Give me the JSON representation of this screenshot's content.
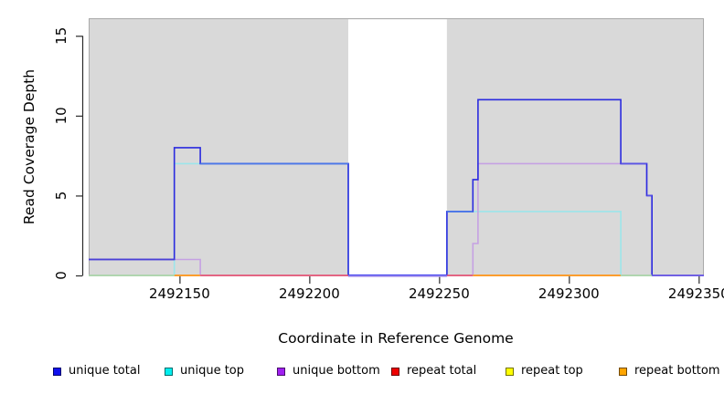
{
  "chart": {
    "xlabel": "Coordinate in Reference Genome",
    "ylabel": "Read Coverage Depth"
  },
  "chart_data": {
    "type": "line",
    "subtype": "step-post",
    "title": "",
    "xlabel": "Coordinate in Reference Genome",
    "ylabel": "Read Coverage Depth",
    "xlim": [
      2492115,
      2492352
    ],
    "ylim": [
      0,
      16.1
    ],
    "xticks": [
      2492150,
      2492200,
      2492250,
      2492300,
      2492350
    ],
    "yticks": [
      0,
      5,
      10,
      15
    ],
    "grid": false,
    "legend_position": "bottom",
    "plot_bg": "#d9d9d9",
    "plot_border": "#a9a9a9",
    "axis_color": "#2b2b2b",
    "gap_region": {
      "from": 2492215,
      "to": 2492253,
      "color": "#ffffff",
      "note": "white no-data band"
    },
    "series": [
      {
        "name": "repeat top",
        "line_color": "#f0ec66",
        "legend_color": "#ffff00",
        "segments": [
          [
            2492115,
            2492352,
            0
          ]
        ]
      },
      {
        "name": "repeat total",
        "line_color": "#e5527a",
        "legend_color": "#ee0000",
        "segments": [
          [
            2492115,
            2492352,
            0
          ]
        ]
      },
      {
        "name": "repeat bottom",
        "line_color": "#ff9d21",
        "legend_color": "#ffa500",
        "segments": [
          [
            2492115,
            2492352,
            0
          ]
        ]
      },
      {
        "name": "unique top",
        "line_color": "#9ce5ea",
        "legend_color": "#00eeee",
        "segments": [
          [
            2492115,
            2492148,
            0
          ],
          [
            2492148,
            2492215,
            7
          ],
          [
            2492215,
            2492253,
            0
          ],
          [
            2492253,
            2492320,
            4
          ],
          [
            2492320,
            2492352,
            0
          ]
        ]
      },
      {
        "name": "unique bottom",
        "line_color": "#c5a1e3",
        "legend_color": "#a020f0",
        "segments": [
          [
            2492115,
            2492158,
            1
          ],
          [
            2492158,
            2492263,
            0
          ],
          [
            2492263,
            2492265,
            2
          ],
          [
            2492265,
            2492330,
            7
          ],
          [
            2492330,
            2492332,
            5
          ],
          [
            2492332,
            2492352,
            0
          ]
        ]
      },
      {
        "name": "unique total",
        "line_color": "#2b2bdf",
        "legend_color": "#1111ee",
        "segments": [
          [
            2492115,
            2492148,
            1
          ],
          [
            2492148,
            2492158,
            8
          ],
          [
            2492158,
            2492215,
            7
          ],
          [
            2492215,
            2492253,
            0
          ],
          [
            2492253,
            2492263,
            4
          ],
          [
            2492263,
            2492265,
            6
          ],
          [
            2492265,
            2492320,
            11
          ],
          [
            2492320,
            2492330,
            7
          ],
          [
            2492330,
            2492332,
            5
          ],
          [
            2492332,
            2492352,
            0
          ]
        ]
      }
    ],
    "overlap_highlights": [
      {
        "level": 1,
        "from": 2492115,
        "to": 2492148,
        "color": "#4a40d6"
      },
      {
        "level": 7,
        "from": 2492158,
        "to": 2492215,
        "color": "#4b79e8"
      },
      {
        "level": 4,
        "from": 2492253,
        "to": 2492263,
        "color": "#4b79e8"
      },
      {
        "level": 7,
        "from": 2492320,
        "to": 2492330,
        "color": "#5b54e4"
      },
      {
        "level": 5,
        "from": 2492330,
        "to": 2492332,
        "color": "#5b54e4"
      }
    ],
    "baseline_segments": [
      {
        "from": 2492115,
        "to": 2492148,
        "color": "#a8dcb4",
        "dy": 0
      },
      {
        "from": 2492148,
        "to": 2492158,
        "color": "#ff9d21",
        "dy": 0
      },
      {
        "from": 2492158,
        "to": 2492215,
        "color": "#e5527a",
        "dy": 0
      },
      {
        "from": 2492215,
        "to": 2492253,
        "color": "#4d4df0",
        "dy": -0.4
      },
      {
        "from": 2492215,
        "to": 2492253,
        "color": "#b09bec",
        "dy": 1.0
      },
      {
        "from": 2492253,
        "to": 2492263,
        "color": "#e5527a",
        "dy": 0
      },
      {
        "from": 2492263,
        "to": 2492320,
        "color": "#ff9d21",
        "dy": 0
      },
      {
        "from": 2492320,
        "to": 2492332,
        "color": "#a8dcb4",
        "dy": 0
      },
      {
        "from": 2492332,
        "to": 2492352,
        "color": "#6f5de8",
        "dy": 0
      }
    ]
  },
  "legend": {
    "items": [
      {
        "label": "unique total",
        "color": "#1111ee"
      },
      {
        "label": "unique top",
        "color": "#00eeee"
      },
      {
        "label": "unique bottom",
        "color": "#a020f0"
      },
      {
        "label": "repeat total",
        "color": "#ee0000"
      },
      {
        "label": "repeat top",
        "color": "#ffff00"
      },
      {
        "label": "repeat bottom",
        "color": "#ffa500"
      }
    ]
  }
}
